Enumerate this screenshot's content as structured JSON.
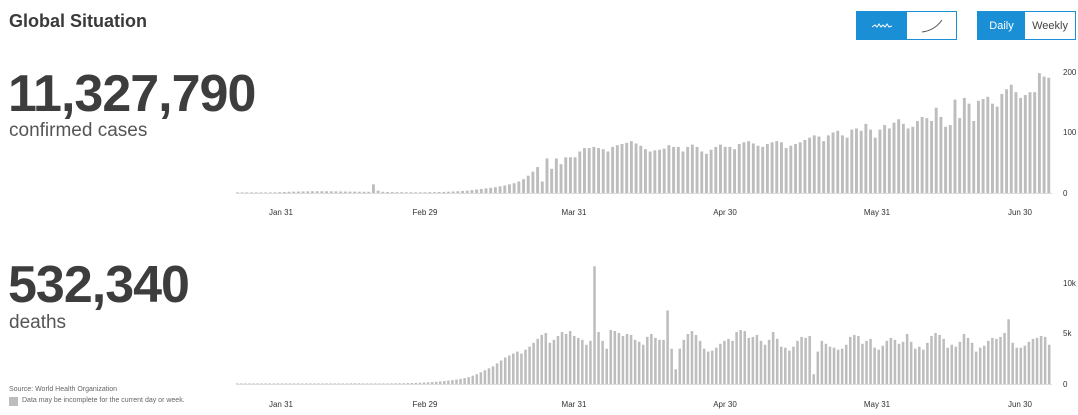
{
  "header": {
    "title": "Global Situation"
  },
  "toggles": {
    "chart_style": {
      "selected": "bars",
      "options": [
        "bars",
        "curve"
      ],
      "icons": [
        "wave-icon",
        "curve-icon"
      ]
    },
    "period": {
      "selected": "Daily",
      "options": [
        "Daily",
        "Weekly"
      ]
    }
  },
  "cases": {
    "value": "11,327,790",
    "label": "confirmed cases"
  },
  "deaths": {
    "value": "532,340",
    "label": "deaths"
  },
  "footer": {
    "source": "Source: World Health Organization",
    "note": "Data may be incomplete for the current day or week."
  },
  "colors": {
    "bar": "#bdbdbd",
    "accent": "#1a8fd6"
  },
  "chart_data": [
    {
      "type": "bar",
      "title": "",
      "xlabel": "",
      "ylabel": "",
      "xticks": [
        "Jan 31",
        "Feb 29",
        "Mar 31",
        "Apr 30",
        "May 31",
        "Jun 30"
      ],
      "yticks": [
        "0",
        "100",
        "200"
      ],
      "ylim": [
        0,
        210
      ],
      "yunit": "thousand",
      "start_date": "2020-01-11",
      "values": [
        0.2,
        0.3,
        0.3,
        0.4,
        0.5,
        0.6,
        0.8,
        1,
        1.2,
        1.5,
        1.8,
        2.1,
        2.3,
        2.5,
        2.7,
        2.9,
        3,
        3,
        3,
        3,
        2.9,
        2.8,
        2.6,
        2.5,
        2.4,
        2.3,
        2.2,
        2.1,
        2,
        15,
        4,
        2,
        1.8,
        1.6,
        1.5,
        1.4,
        1.3,
        1.3,
        1.2,
        1.2,
        1.3,
        1.4,
        1.5,
        1.7,
        1.9,
        2.2,
        2.6,
        3,
        3.6,
        4.2,
        5,
        6,
        7,
        8,
        9,
        10,
        11.5,
        13,
        15,
        17,
        20,
        24,
        30,
        37,
        45,
        20,
        60,
        42,
        60,
        50,
        62,
        62,
        62,
        72,
        78,
        78,
        80,
        78,
        76,
        72,
        80,
        83,
        85,
        87,
        90,
        86,
        82,
        76,
        72,
        74,
        75,
        77,
        83,
        80,
        80,
        72,
        80,
        84,
        80,
        72,
        68,
        75,
        80,
        84,
        80,
        80,
        76,
        85,
        88,
        90,
        86,
        82,
        80,
        85,
        88,
        90,
        88,
        78,
        82,
        85,
        88,
        92,
        96,
        100,
        98,
        90,
        100,
        105,
        108,
        100,
        96,
        110,
        112,
        108,
        120,
        110,
        96,
        110,
        118,
        112,
        122,
        128,
        120,
        112,
        115,
        125,
        132,
        130,
        125,
        148,
        132,
        115,
        118,
        162,
        130,
        165,
        155,
        125,
        160,
        163,
        167,
        155,
        150,
        172,
        180,
        188,
        175,
        165,
        170,
        175,
        175,
        208,
        202,
        200
      ]
    },
    {
      "type": "bar",
      "title": "",
      "xlabel": "",
      "ylabel": "",
      "xticks": [
        "Jan 31",
        "Feb 29",
        "Mar 31",
        "Apr 30",
        "May 31",
        "Jun 30"
      ],
      "yticks": [
        "0",
        "5k",
        "10k"
      ],
      "ylim": [
        0,
        10500
      ],
      "start_date": "2020-01-11",
      "values": [
        5,
        5,
        5,
        10,
        10,
        15,
        15,
        20,
        20,
        25,
        25,
        30,
        30,
        30,
        35,
        35,
        40,
        40,
        45,
        45,
        50,
        50,
        50,
        55,
        55,
        60,
        60,
        60,
        65,
        80,
        70,
        60,
        55,
        50,
        50,
        50,
        55,
        60,
        65,
        70,
        75,
        80,
        90,
        100,
        110,
        130,
        150,
        170,
        200,
        230,
        260,
        300,
        350,
        400,
        450,
        520,
        600,
        700,
        850,
        1000,
        1200,
        1400,
        1600,
        1800,
        2100,
        2400,
        2700,
        2900,
        3100,
        3300,
        3100,
        3500,
        3800,
        4200,
        4600,
        5000,
        5200,
        4200,
        4500,
        4900,
        5300,
        5100,
        5400,
        4900,
        4700,
        4500,
        4000,
        4400,
        12000,
        5300,
        4400,
        3600,
        5500,
        5400,
        5200,
        4900,
        5100,
        5000,
        4500,
        4300,
        4000,
        4800,
        5100,
        4700,
        4500,
        4500,
        7500,
        3600,
        1500,
        3600,
        4500,
        5100,
        5400,
        5000,
        4400,
        3600,
        3300,
        3400,
        3700,
        4100,
        4400,
        4600,
        4400,
        5300,
        5500,
        5400,
        4700,
        4800,
        5000,
        4400,
        4000,
        4500,
        5300,
        4600,
        3800,
        3700,
        3400,
        3800,
        4400,
        4800,
        4700,
        4900,
        1000,
        3300,
        4400,
        4100,
        3800,
        3700,
        3500,
        3600,
        4000,
        4800,
        5000,
        4900,
        4100,
        4400,
        4600,
        3700,
        3500,
        3900,
        4400,
        4700,
        4500,
        4100,
        4300,
        5100,
        4300,
        3600,
        3800,
        3500,
        4200,
        4900,
        5200,
        5000,
        4600,
        3700,
        4000,
        3800,
        4300,
        5100,
        4700,
        4200,
        3300,
        3700,
        3900,
        4400,
        4700,
        4600,
        4800,
        5200,
        6600,
        4200,
        3700,
        3700,
        3900,
        4300,
        4600,
        4700,
        4900,
        4800,
        4000
      ]
    }
  ]
}
